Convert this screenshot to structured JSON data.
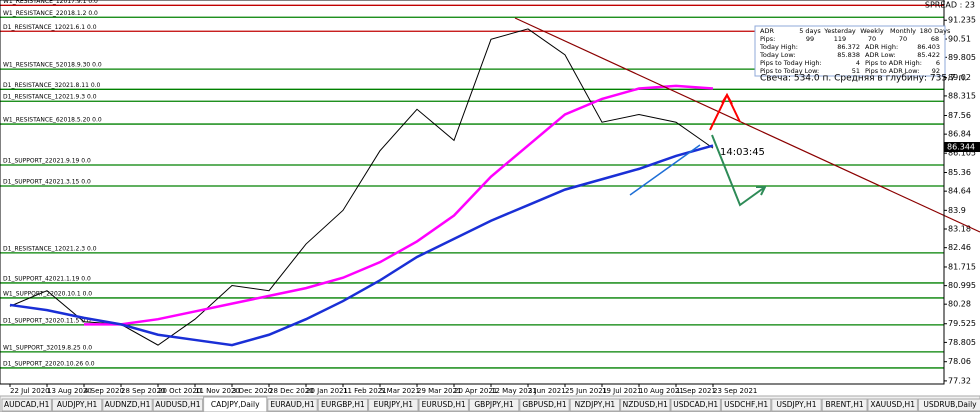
{
  "chart_data": {
    "type": "line",
    "categories": [
      "22 Jul 2020",
      "13 Aug 2020",
      "4 Sep 2020",
      "28 Sep 2020",
      "20 Oct 2020",
      "11 Nov 2020",
      "3 Dec 2020",
      "28 Dec 2020",
      "20 Jan 2021",
      "11 Feb 2021",
      "5 Mar 2021",
      "29 Mar 2021",
      "20 Apr 2021",
      "12 May 2021",
      "3 Jun 2021",
      "25 Jun 2021",
      "19 Jul 2021",
      "10 Aug 2021",
      "1 Sep 2021",
      "23 Sep 2021"
    ],
    "series": [
      {
        "color": "#000000",
        "values": [
          80.2,
          80.8,
          79.6,
          79.5,
          78.7,
          79.7,
          81.0,
          80.8,
          82.6,
          83.9,
          86.2,
          87.8,
          86.6,
          90.5,
          90.9,
          89.9,
          87.3,
          87.6,
          87.3,
          86.3
        ]
      },
      {
        "color": "#ff00ff",
        "values": [
          null,
          null,
          79.5,
          79.5,
          79.7,
          80.0,
          80.3,
          80.6,
          80.9,
          81.3,
          81.9,
          82.7,
          83.7,
          85.2,
          86.4,
          87.6,
          88.2,
          88.6,
          88.7,
          88.6
        ]
      },
      {
        "color": "#1a2fd6",
        "values": [
          80.25,
          80.05,
          79.75,
          79.5,
          79.1,
          78.9,
          78.7,
          79.1,
          79.7,
          80.4,
          81.2,
          82.1,
          82.8,
          83.5,
          84.1,
          84.7,
          85.1,
          85.5,
          86.0,
          86.4
        ]
      }
    ],
    "ylim": [
      77.2,
      91.9
    ],
    "yticks": [
      77.32,
      78.06,
      78.805,
      79.525,
      80.28,
      80.995,
      81.715,
      82.46,
      83.18,
      83.9,
      84.64,
      85.36,
      86.105,
      86.84,
      87.56,
      88.315,
      89.02,
      89.805,
      90.51,
      91.235
    ],
    "current_price": 86.344,
    "countdown": "14:03:45",
    "candle_text": "Свеча: 534.0 п. Средняя в глубину: 735.7 п.",
    "spread": "SPREAD : 23"
  },
  "levels": [
    {
      "label": "W1_RESISTANCE_12017.9.1 0.0",
      "value": 91.81,
      "color": "#c00000"
    },
    {
      "label": "W1_RESISTANCE_22018.1.2 0.0",
      "value": 91.35,
      "color": "#008000"
    },
    {
      "label": "D1_RESISTANCE_12021.6.1 0.0",
      "value": 90.81,
      "color": "#c00000"
    },
    {
      "label": "W1_RESISTANCE_52018.9.30 0.0",
      "value": 89.35,
      "color": "#008000"
    },
    {
      "label": "D1_RESISTANCE_32021.8.11 0.0",
      "value": 88.57,
      "color": "#008000"
    },
    {
      "label": "D1_RESISTANCE_12021.9.3 0.0",
      "value": 88.11,
      "color": "#008000"
    },
    {
      "label": "W1_RESISTANCE_62018.5.20 0.0",
      "value": 87.23,
      "color": "#008000"
    },
    {
      "label": "D1_SUPPORT_22021.9.19 0.0",
      "value": 85.65,
      "color": "#008000"
    },
    {
      "label": "D1_SUPPORT_42021.3.15 0.0",
      "value": 84.84,
      "color": "#008000"
    },
    {
      "label": "D1_RESISTANCE_12021.2.3 0.0",
      "value": 82.26,
      "color": "#008000"
    },
    {
      "label": "D1_SUPPORT_42021.1.19 0.0",
      "value": 81.1,
      "color": "#008000"
    },
    {
      "label": "W1_SUPPORT_22020.10.1 0.0",
      "value": 80.52,
      "color": "#008000"
    },
    {
      "label": "D1_SUPPORT_32020.11.5 0.0",
      "value": 79.48,
      "color": "#008000"
    },
    {
      "label": "W1_SUPPORT_32019.8.25 0.0",
      "value": 78.44,
      "color": "#008000"
    },
    {
      "label": "D1_SUPPORT_22020.10.26 0.0",
      "value": 77.82,
      "color": "#008000"
    }
  ],
  "info_panel": {
    "rows": [
      [
        "ADR",
        "5 days",
        "Yesterday",
        "Weekly",
        "Monthly",
        "180 Days"
      ],
      [
        "Pips:",
        "99",
        "119",
        "70",
        "70",
        "68"
      ],
      [
        "Today High:",
        "86.372",
        "ADR High:",
        "86.403"
      ],
      [
        "Today Low:",
        "85.838",
        "ADR Low:",
        "85.422"
      ],
      [
        "Pips to Today High:",
        "4",
        "Pips to ADR High:",
        "6"
      ],
      [
        "Pips to Today Low:",
        "51",
        "Pips to ADR Low:",
        "92"
      ]
    ]
  },
  "tabs": {
    "items": [
      "AUDCAD,H1",
      "AUDJPY,H1",
      "AUDNZD,H1",
      "AUDUSD,H1",
      "CADJPY,Daily",
      "EURAUD,H1",
      "EURGBP,H1",
      "EURJPY,H1",
      "EURUSD,H1",
      "GBPJPY,H1",
      "GBPUSD,H1",
      "NZDJPY,H1",
      "NZDUSD,H1",
      "USDCAD,H1",
      "USDCHF,H1",
      "USDJPY,H1",
      "BRENT,H1",
      "XAUUSD,H1",
      "USDRUB,Daily"
    ],
    "active": 4
  }
}
